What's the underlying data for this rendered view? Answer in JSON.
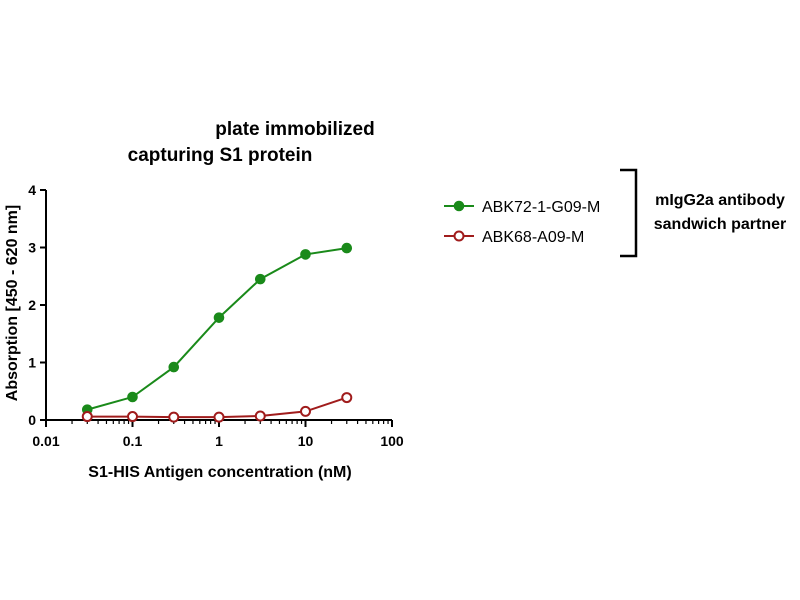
{
  "chart_data": {
    "type": "line",
    "title_lines": [
      "plate immobilized",
      "capturing S1 protein"
    ],
    "xlabel": "S1-HIS Antigen concentration (nM)",
    "ylabel": "Absorption [450 - 620 nm]",
    "x_scale": "log",
    "xlim": [
      0.01,
      100
    ],
    "ylim": [
      0,
      4
    ],
    "x_ticks": [
      0.01,
      0.1,
      1,
      10,
      100
    ],
    "x_tick_labels": [
      "0.01",
      "0.1",
      "1",
      "10",
      "100"
    ],
    "y_ticks": [
      0,
      1,
      2,
      3,
      4
    ],
    "y_tick_labels": [
      "0",
      "1",
      "2",
      "3",
      "4"
    ],
    "grid": false,
    "legend_position": "right",
    "series": [
      {
        "name": "ABK72-1-G09-M",
        "color": "#1a8a1a",
        "marker": "filled-circle",
        "x": [
          0.03,
          0.1,
          0.3,
          1,
          3,
          10,
          30
        ],
        "y": [
          0.18,
          0.4,
          0.92,
          1.78,
          2.45,
          2.88,
          2.99
        ]
      },
      {
        "name": "ABK68-A09-M",
        "color": "#a01c1c",
        "marker": "open-circle",
        "x": [
          0.03,
          0.1,
          0.3,
          1,
          3,
          10,
          30
        ],
        "y": [
          0.06,
          0.06,
          0.05,
          0.05,
          0.07,
          0.15,
          0.39
        ]
      }
    ],
    "bracket_label_lines": [
      "mIgG2a antibody",
      "sandwich partner"
    ]
  }
}
